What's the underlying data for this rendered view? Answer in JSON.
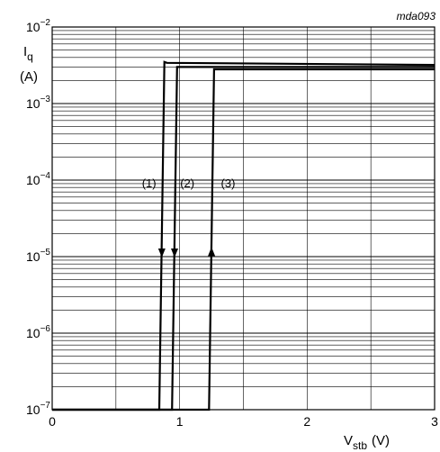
{
  "chart_data": {
    "type": "line",
    "reference": "mda093",
    "xlabel": {
      "main": "V",
      "sub": "stb",
      "unit": "(V)"
    },
    "ylabel": {
      "main": "I",
      "sub": "q",
      "unit": "(A)"
    },
    "xlim": [
      0,
      3
    ],
    "ylim": [
      1e-07,
      0.01
    ],
    "y_scale": "log",
    "grid": true,
    "x_ticks": [
      {
        "value": 0,
        "label": "0"
      },
      {
        "value": 1,
        "label": "1"
      },
      {
        "value": 2,
        "label": "2"
      },
      {
        "value": 3,
        "label": "3"
      }
    ],
    "y_ticks": [
      {
        "value": 1e-07,
        "base": "10",
        "exp": "−7"
      },
      {
        "value": 1e-06,
        "base": "10",
        "exp": "−6"
      },
      {
        "value": 1e-05,
        "base": "10",
        "exp": "−5"
      },
      {
        "value": 0.0001,
        "base": "10",
        "exp": "−4"
      },
      {
        "value": 0.001,
        "base": "10",
        "exp": "−3"
      },
      {
        "value": 0.01,
        "base": "10",
        "exp": "−2"
      }
    ],
    "series": [
      {
        "label": "(1)",
        "arrow": "down",
        "arrow_at": {
          "x": 0.86,
          "y": 1e-05
        },
        "label_at": {
          "x": 0.76,
          "y": 8e-05
        },
        "x": [
          0,
          0.84,
          0.88,
          0.9,
          3
        ],
        "y": [
          1e-07,
          1e-07,
          0.0035,
          0.0034,
          0.0032
        ]
      },
      {
        "label": "(2)",
        "arrow": "down",
        "arrow_at": {
          "x": 0.96,
          "y": 1e-05
        },
        "label_at": {
          "x": 1.06,
          "y": 8e-05
        },
        "x": [
          0,
          0.94,
          0.98,
          1.0,
          3
        ],
        "y": [
          1e-07,
          1e-07,
          0.003,
          0.003,
          0.003
        ]
      },
      {
        "label": "(3)",
        "arrow": "up",
        "arrow_at": {
          "x": 1.25,
          "y": 1.3e-05
        },
        "label_at": {
          "x": 1.38,
          "y": 8e-05
        },
        "x": [
          0,
          1.23,
          1.27,
          1.29,
          3
        ],
        "y": [
          1e-07,
          1e-07,
          0.0028,
          0.0028,
          0.0028
        ]
      }
    ]
  }
}
